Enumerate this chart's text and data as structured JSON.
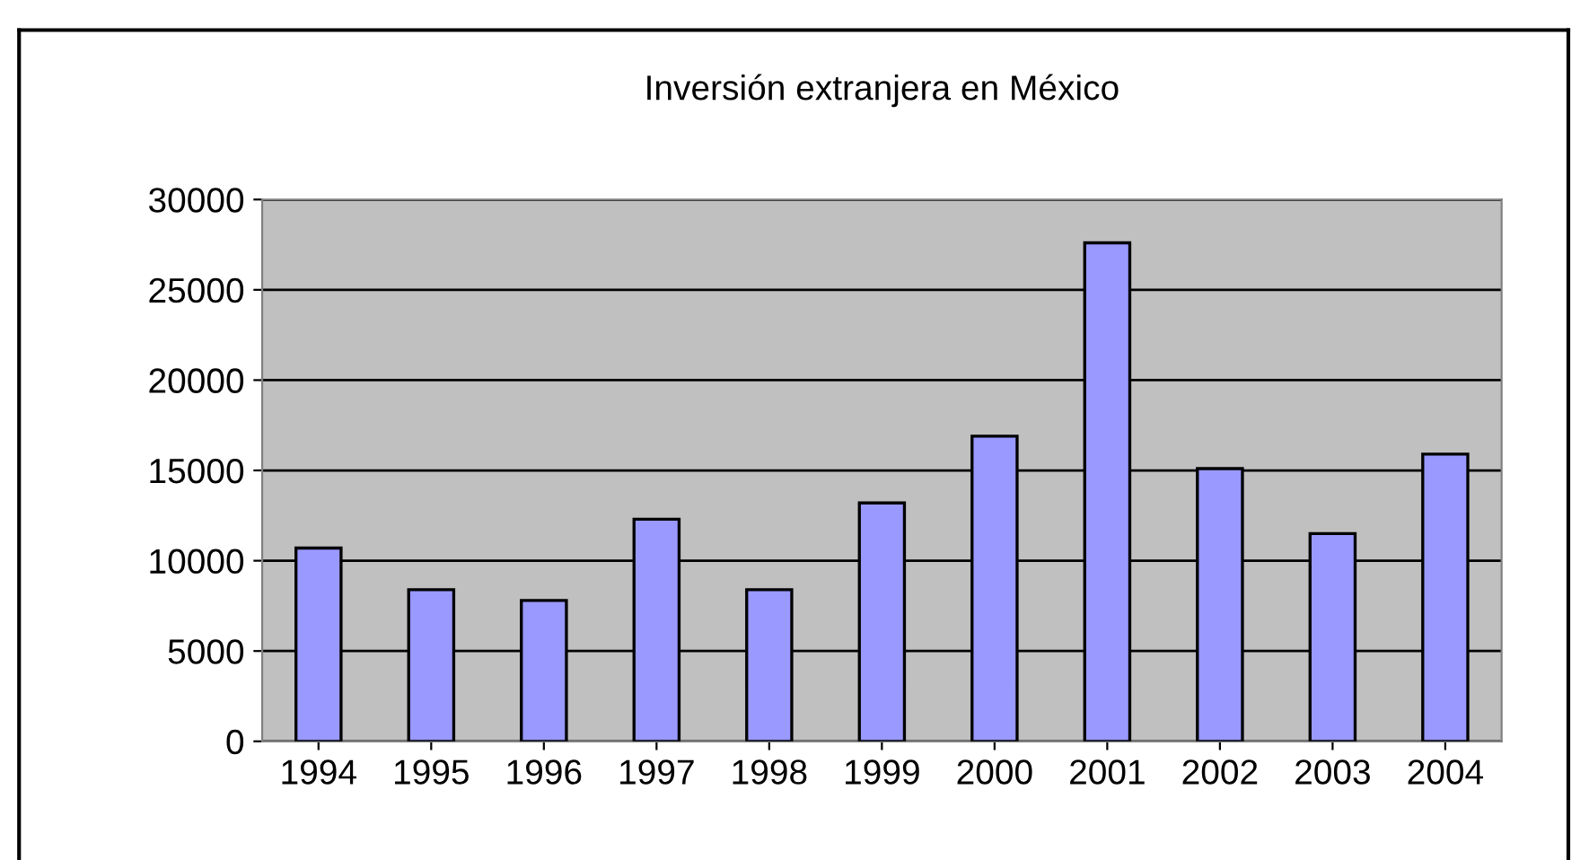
{
  "chart_data": {
    "type": "bar",
    "title": "Inversión extranjera en México",
    "categories": [
      "1994",
      "1995",
      "1996",
      "1997",
      "1998",
      "1999",
      "2000",
      "2001",
      "2002",
      "2003",
      "2004"
    ],
    "values": [
      10700,
      8400,
      7800,
      12300,
      8400,
      13200,
      16900,
      27600,
      15100,
      11500,
      15900
    ],
    "color": "#9999ff",
    "ylim": [
      0,
      30000
    ],
    "yticks": [
      0,
      5000,
      10000,
      15000,
      20000,
      25000,
      30000
    ],
    "grid": "y"
  }
}
